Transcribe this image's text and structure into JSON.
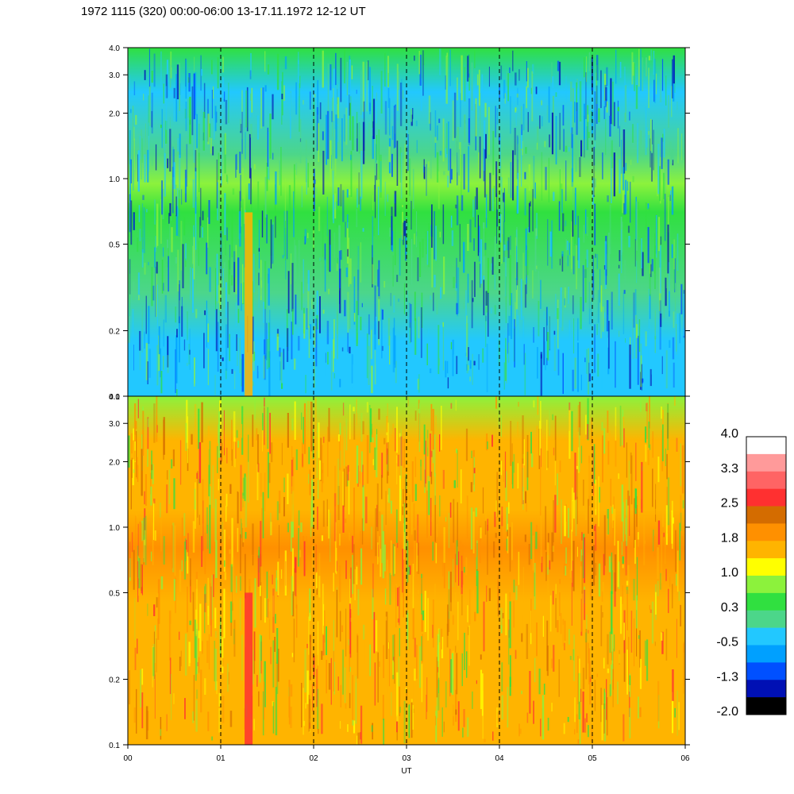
{
  "title": "1972 1115 (320) 00:00-06:00 13-17.11.1972  12-12 UT",
  "chart_data": {
    "type": "heatmap",
    "panels": [
      {
        "name": "",
        "yscale": "log",
        "ylim": [
          0.1,
          4.0
        ],
        "yticks": [
          "0.1",
          "0.2",
          "0.5",
          "1.0",
          "2.0",
          "3.0",
          "4.0"
        ],
        "band_profile": [
          {
            "y": 0.1,
            "color": "#22c8ff"
          },
          {
            "y": 0.18,
            "color": "#22c8ff"
          },
          {
            "y": 0.3,
            "color": "#4cd68a"
          },
          {
            "y": 0.7,
            "color": "#30e040"
          },
          {
            "y": 0.95,
            "color": "#8cf23c"
          },
          {
            "y": 1.3,
            "color": "#4cd68a"
          },
          {
            "y": 2.5,
            "color": "#22c8ff"
          },
          {
            "y": 4.0,
            "color": "#30e040"
          }
        ],
        "features": [
          {
            "label": "01:18",
            "x": 1.3,
            "color": "#ffb400"
          }
        ]
      },
      {
        "name": "",
        "yscale": "log",
        "ylim": [
          0.1,
          4.0
        ],
        "yticks": [
          "0.1",
          "0.2",
          "0.5",
          "1.0",
          "2.0",
          "3.0",
          "4.0"
        ],
        "band_profile": [
          {
            "y": 0.1,
            "color": "#ffb400"
          },
          {
            "y": 0.2,
            "color": "#ffb400"
          },
          {
            "y": 0.45,
            "color": "#ffb400"
          },
          {
            "y": 0.8,
            "color": "#ff9000"
          },
          {
            "y": 1.2,
            "color": "#ffb400"
          },
          {
            "y": 2.5,
            "color": "#ffb400"
          },
          {
            "y": 4.0,
            "color": "#8cf23c"
          }
        ],
        "features": [
          {
            "label": "01:18",
            "x": 1.3,
            "color": "#ff3030"
          }
        ]
      }
    ],
    "x": {
      "label": "UT",
      "range": [
        0,
        6
      ],
      "ticks": [
        "00",
        "01",
        "02",
        "03",
        "04",
        "05",
        "06"
      ],
      "dashed_gridlines": [
        1,
        2,
        3,
        4,
        5
      ]
    },
    "colorbar": {
      "tick_labels": [
        "4.0",
        "3.3",
        "2.5",
        "1.8",
        "1.0",
        "0.3",
        "-0.5",
        "-1.3",
        "-2.0"
      ],
      "colors_top_to_bottom": [
        "#ffffff",
        "#ff9a9a",
        "#ff6464",
        "#ff3030",
        "#d46c00",
        "#ff9000",
        "#ffb400",
        "#ffff00",
        "#8cf23c",
        "#30e040",
        "#4cd68a",
        "#22c8ff",
        "#00a0ff",
        "#0050ff",
        "#0010b4",
        "#000000"
      ]
    }
  }
}
